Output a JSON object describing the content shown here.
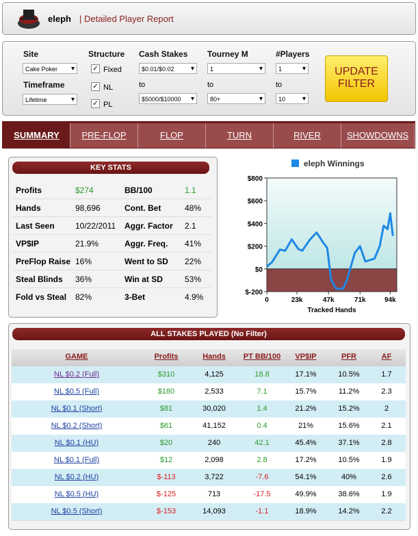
{
  "header": {
    "player": "eleph",
    "subtitle": "| Detailed Player Report"
  },
  "filters": {
    "site_label": "Site",
    "site": "Cake Poker",
    "timeframe_label": "Timeframe",
    "timeframe": "Lifetime",
    "structure_label": "Structure",
    "structure": [
      "Fixed",
      "NL",
      "PL"
    ],
    "cash_label": "Cash Stakes",
    "cash_from": "$0.01/$0.02",
    "cash_to_label": "to",
    "cash_to": "$5000/$10000",
    "tourney_label": "Tourney M",
    "tourney_from": "1",
    "tourney_to_label": "to",
    "tourney_to": "80+",
    "players_label": "#Players",
    "players_from": "1",
    "players_to_label": "to",
    "players_to": "10",
    "button": "UPDATE FILTER"
  },
  "tabs": [
    "SUMMARY",
    "PRE-FLOP",
    "FLOP",
    "TURN",
    "RIVER",
    "SHOWDOWNS"
  ],
  "key_stats": {
    "title": "KEY STATS",
    "rows": [
      [
        "Profits",
        "$274",
        "BB/100",
        "1.1"
      ],
      [
        "Hands",
        "98,696",
        "Cont. Bet",
        "48%"
      ],
      [
        "Last Seen",
        "10/22/2011",
        "Aggr. Factor",
        "2.1"
      ],
      [
        "VP$IP",
        "21.9%",
        "Aggr. Freq.",
        "41%"
      ],
      [
        "PreFlop Raise",
        "16%",
        "Went to SD",
        "22%"
      ],
      [
        "Steal Blinds",
        "36%",
        "Win at SD",
        "53%"
      ],
      [
        "Fold vs Steal",
        "82%",
        "3-Bet",
        "4.9%"
      ]
    ]
  },
  "chart_data": {
    "type": "line",
    "x_label": "Tracked Hands",
    "x": [
      0,
      4000,
      10000,
      14000,
      19000,
      24000,
      27000,
      33000,
      38000,
      43000,
      46000,
      49000,
      53000,
      58000,
      61000,
      67000,
      71000,
      75000,
      82000,
      86000,
      89000,
      92000,
      94000,
      96000
    ],
    "series": [
      {
        "name": "eleph Winnings",
        "color": "#1e88e5",
        "values": [
          20,
          60,
          170,
          160,
          260,
          175,
          160,
          260,
          320,
          230,
          185,
          -100,
          -175,
          -175,
          -100,
          140,
          200,
          65,
          90,
          200,
          380,
          350,
          490,
          290
        ]
      }
    ],
    "xlim": [
      0,
      99000
    ],
    "ylim": [
      -200,
      800
    ],
    "xticks": [
      0,
      {
        "value": 23000,
        "label": "23k"
      },
      {
        "value": 47000,
        "label": "47k"
      },
      {
        "value": 71000,
        "label": "71k"
      },
      {
        "value": 94000,
        "label": "94k"
      }
    ],
    "yticks": [
      {
        "value": -200,
        "label": "$-200"
      },
      {
        "value": 0,
        "label": "$0"
      },
      {
        "value": 200,
        "label": "$200"
      },
      {
        "value": 400,
        "label": "$400"
      },
      {
        "value": 600,
        "label": "$600"
      },
      {
        "value": 800,
        "label": "$800"
      }
    ]
  },
  "stakes_table": {
    "title": "ALL STAKES PLAYED (No Filter)",
    "columns": [
      "GAME",
      "Profits",
      "Hands",
      "PT BB/100",
      "VP$IP",
      "PFR",
      "AF"
    ],
    "rows": [
      [
        "NL $0.2 (Full)",
        "$310",
        "4,125",
        "18.8",
        "17.1%",
        "10.5%",
        "1.7"
      ],
      [
        "NL $0.5 (Full)",
        "$180",
        "2,533",
        "7.1",
        "15.7%",
        "11.2%",
        "2.3"
      ],
      [
        "NL $0.1 (Short)",
        "$81",
        "30,020",
        "1.4",
        "21.2%",
        "15.2%",
        "2"
      ],
      [
        "NL $0.2 (Short)",
        "$61",
        "41,152",
        "0.4",
        "21%",
        "15.6%",
        "2.1"
      ],
      [
        "NL $0.1 (HU)",
        "$20",
        "240",
        "42.1",
        "45.4%",
        "37.1%",
        "2.8"
      ],
      [
        "NL $0.1 (Full)",
        "$12",
        "2,098",
        "2.8",
        "17.2%",
        "10.5%",
        "1.9"
      ],
      [
        "NL $0.2 (HU)",
        "$-113",
        "3,722",
        "-7.6",
        "54.1%",
        "40%",
        "2.6"
      ],
      [
        "NL $0.5 (HU)",
        "$-125",
        "713",
        "-17.5",
        "49.9%",
        "38.6%",
        "1.9"
      ],
      [
        "NL $0.5 (Short)",
        "$-153",
        "14,093",
        "-1.1",
        "18.9%",
        "14.2%",
        "2.2"
      ]
    ]
  }
}
